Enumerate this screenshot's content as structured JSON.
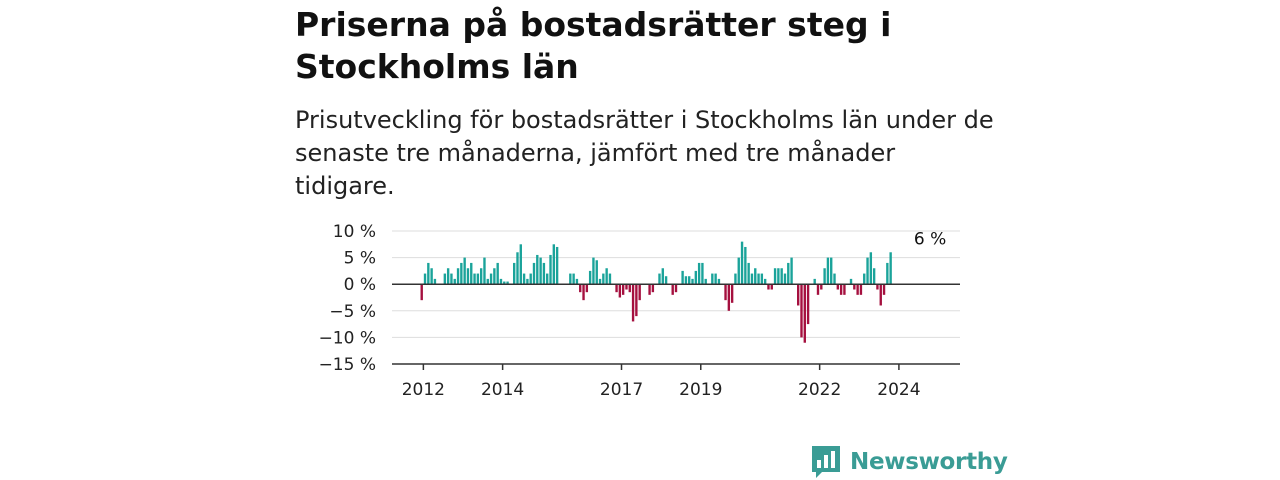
{
  "title": "Priserna på bostadsrätter steg i Stockholms län",
  "subtitle": "Prisutveckling för bostadsrätter i Stockholms län under de senaste tre månaderna, jämfört med tre månader tidigare.",
  "brand": {
    "name": "Newsworthy",
    "icon": "newsworthy-bar-chart-icon",
    "color": "#3a9c95"
  },
  "colors": {
    "positive": "#1aa39a",
    "negative": "#a5103f",
    "grid": "#dddddd",
    "axis": "#333333"
  },
  "chart_data": {
    "type": "bar",
    "title": "Priserna på bostadsrätter steg i Stockholms län",
    "xlabel": "",
    "ylabel": "",
    "ylim": [
      -15,
      10
    ],
    "yticks": [
      10,
      5,
      0,
      -5,
      -10,
      -15
    ],
    "ytick_labels": [
      "10 %",
      "5 %",
      "0 %",
      "−5 %",
      "−10 %",
      "−15 %"
    ],
    "xticks": [
      2012,
      2014,
      2017,
      2019,
      2022,
      2024
    ],
    "xtick_labels": [
      "2012",
      "2014",
      "2017",
      "2019",
      "2022",
      "2024"
    ],
    "grid": true,
    "frequency": "monthly",
    "start": "2011-09",
    "values": [
      0,
      0,
      0,
      -3,
      2,
      4,
      3,
      1,
      0,
      0,
      2,
      3,
      2,
      1,
      3,
      4,
      5,
      3,
      4,
      2,
      2,
      3,
      5,
      1,
      2,
      3,
      4,
      1,
      0.5,
      0.5,
      0,
      4,
      6,
      7.5,
      2,
      1,
      2,
      4,
      5.5,
      5,
      4,
      2,
      5.5,
      7.5,
      7,
      0,
      0,
      0,
      2,
      2,
      1,
      -1.5,
      -3,
      -1.5,
      2.5,
      5,
      4.5,
      1,
      2,
      3,
      2,
      0,
      -1.5,
      -2.5,
      -2,
      -1,
      -1.5,
      -7,
      -6,
      -3,
      0,
      0,
      -2,
      -1.5,
      0,
      2,
      3,
      1.5,
      0,
      -2,
      -1.5,
      0,
      2.5,
      1.5,
      1.5,
      1,
      2.5,
      4,
      4,
      1,
      0,
      2,
      2,
      1,
      0,
      -3,
      -5,
      -3.5,
      2,
      5,
      8,
      7,
      4,
      2,
      3,
      2,
      2,
      1,
      -1,
      -1,
      3,
      3,
      3,
      2,
      4,
      5,
      0,
      -4,
      -10,
      -11,
      -7.5,
      0,
      1,
      -2,
      -1,
      3,
      5,
      5,
      2,
      -1,
      -2,
      -2,
      0,
      1,
      -1,
      -2,
      -2,
      2,
      5,
      6,
      3,
      -1,
      -4,
      -2,
      4,
      6
    ],
    "annotations": [
      {
        "x": "2024-10",
        "y": 6,
        "text": "6 %"
      }
    ]
  }
}
